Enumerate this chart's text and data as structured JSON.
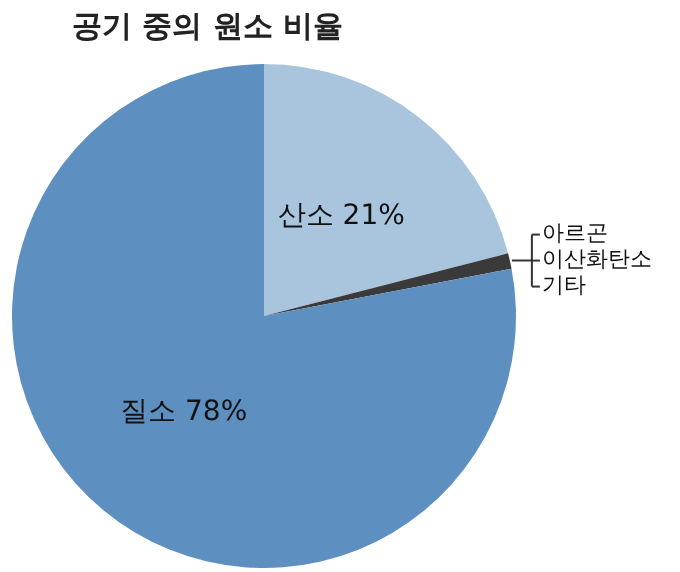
{
  "chart_data": {
    "type": "pie",
    "title": "공기 중의 원소 비율",
    "categories": [
      "산소",
      null,
      "질소"
    ],
    "values": [
      21,
      1,
      78
    ],
    "value_labels": [
      "21%",
      null,
      "78%"
    ],
    "colors": [
      "#a9c5dd",
      "#3a3a3a",
      "#5d90c0"
    ],
    "annotations": [
      "아르곤",
      "이산화탄소",
      "기타"
    ]
  }
}
